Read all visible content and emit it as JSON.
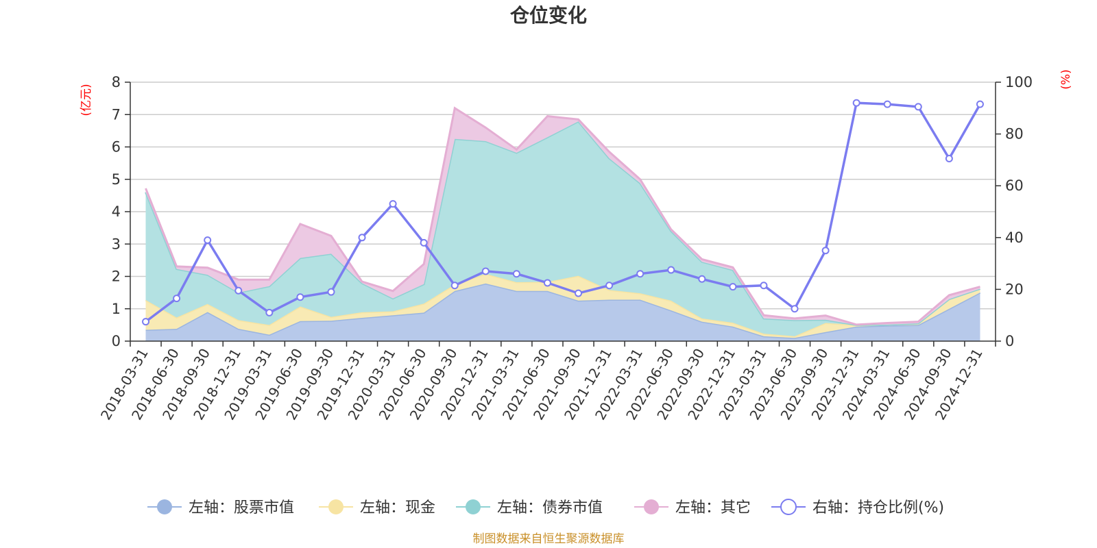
{
  "chart_data": {
    "type": "area",
    "title": "仓位变化",
    "source": "制图数据来自恒生聚源数据库",
    "left_axis_unit": "(亿元)",
    "right_axis_unit": "(%)",
    "ylim_left": [
      0,
      8
    ],
    "yticks_left": [
      "0",
      "1",
      "2",
      "3",
      "4",
      "5",
      "6",
      "7",
      "8"
    ],
    "ylim_right": [
      0,
      100
    ],
    "yticks_right": [
      "0",
      "20",
      "40",
      "60",
      "80",
      "100"
    ],
    "grid": true,
    "legend_position": "bottom",
    "categories": [
      "2018-03-31",
      "2018-06-30",
      "2018-09-30",
      "2018-12-31",
      "2019-03-31",
      "2019-06-30",
      "2019-09-30",
      "2019-12-31",
      "2020-03-31",
      "2020-06-30",
      "2020-09-30",
      "2020-12-31",
      "2021-03-31",
      "2021-06-30",
      "2021-09-30",
      "2021-12-31",
      "2022-03-31",
      "2022-06-30",
      "2022-09-30",
      "2022-12-31",
      "2023-03-31",
      "2023-06-30",
      "2023-09-30",
      "2023-12-31",
      "2024-03-31",
      "2024-06-30",
      "2024-09-30",
      "2024-12-31"
    ],
    "stacked_series": [
      {
        "name": "左轴：股票市值",
        "color": "#9bb5e0",
        "fill": "#b7c9ea",
        "values": [
          0.35,
          0.38,
          0.9,
          0.38,
          0.2,
          0.62,
          0.63,
          0.72,
          0.8,
          0.88,
          1.55,
          1.78,
          1.55,
          1.55,
          1.25,
          1.28,
          1.28,
          0.95,
          0.6,
          0.45,
          0.15,
          0.1,
          0.28,
          0.45,
          0.48,
          0.5,
          1.0,
          1.5
        ]
      },
      {
        "name": "左轴：现金",
        "color": "#f7e4a3",
        "fill": "#f8eab4",
        "values": [
          0.92,
          0.35,
          0.25,
          0.27,
          0.3,
          0.45,
          0.12,
          0.17,
          0.12,
          0.28,
          0.2,
          0.3,
          0.27,
          0.28,
          0.77,
          0.3,
          0.2,
          0.3,
          0.1,
          0.12,
          0.08,
          0.05,
          0.28,
          0.05,
          0.03,
          0.05,
          0.3,
          0.12
        ]
      },
      {
        "name": "左轴：债券市值",
        "color": "#8fd1d3",
        "fill": "#b3e1e2",
        "values": [
          3.33,
          1.5,
          0.9,
          0.85,
          1.2,
          1.5,
          1.95,
          0.9,
          0.4,
          0.6,
          4.5,
          4.1,
          4.0,
          4.47,
          4.77,
          4.07,
          3.4,
          2.15,
          1.75,
          1.63,
          0.47,
          0.5,
          0.1,
          0.0,
          0.0,
          0.0,
          0.0,
          0.0
        ]
      },
      {
        "name": "左轴：其它",
        "color": "#e4aed3",
        "fill": "#ecc9e3",
        "values": [
          0.12,
          0.08,
          0.22,
          0.4,
          0.2,
          1.05,
          0.55,
          0.05,
          0.23,
          0.62,
          0.95,
          0.42,
          0.1,
          0.65,
          0.06,
          0.2,
          0.12,
          0.05,
          0.08,
          0.08,
          0.1,
          0.05,
          0.13,
          0.01,
          0.05,
          0.05,
          0.12,
          0.06
        ]
      }
    ],
    "line_series": {
      "name": "右轴：持仓比例(%)",
      "color": "#7b7cf0",
      "axis": "right",
      "values": [
        7.5,
        16.5,
        39,
        19.5,
        11,
        17,
        19,
        40,
        53,
        38,
        21.5,
        27,
        26,
        22.5,
        18.5,
        21.5,
        26,
        27.5,
        24,
        21,
        21.5,
        12.5,
        35,
        92,
        91.5,
        90.5,
        70.5,
        91.5
      ]
    }
  }
}
